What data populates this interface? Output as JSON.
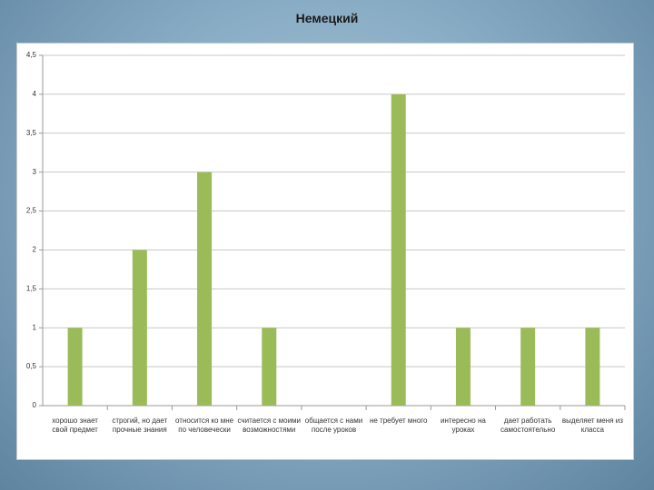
{
  "chart_data": {
    "type": "bar",
    "title": "Немецкий",
    "categories": [
      "хорошо знает свой предмет",
      "строгий, но дает прочные знания",
      "относится ко мне по человечески",
      "считается с моими возможностями",
      "общается с нами после уроков",
      "не требует много",
      "интересно на уроках",
      "дает работать самостоятельно",
      "выделяет меня из класса"
    ],
    "values": [
      1,
      2,
      3,
      1,
      0,
      4,
      1,
      1,
      1
    ],
    "color": "#9bbb59",
    "ylim": [
      0,
      4.5
    ],
    "yticks": [
      0,
      {
        "value": 0.5,
        "label": "0,5"
      },
      1,
      {
        "value": 1.5,
        "label": "1,5"
      },
      2,
      {
        "value": 2.5,
        "label": "2,5"
      },
      3,
      {
        "value": 3.5,
        "label": "3,5"
      },
      4,
      {
        "value": 4.5,
        "label": "4,5"
      }
    ],
    "grid": true
  }
}
